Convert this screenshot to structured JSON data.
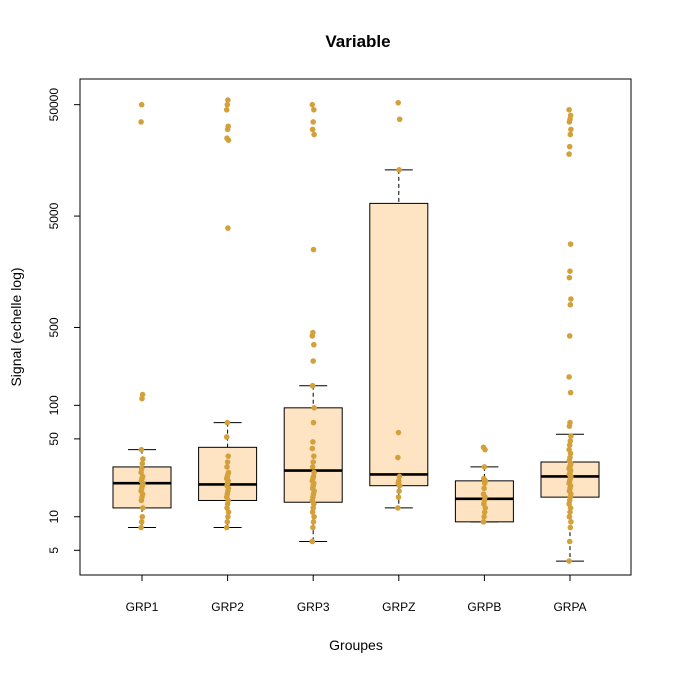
{
  "chart_data": {
    "type": "box",
    "title": "Variable",
    "xlabel": "Groupes",
    "ylabel": "Signal (echelle log)",
    "y_scale": "log",
    "ylim": [
      3,
      85000
    ],
    "y_ticks": [
      5,
      10,
      50,
      100,
      500,
      5000,
      50000
    ],
    "grid": false,
    "legend": "none",
    "colors": {
      "box_fill": "#FFE4C4",
      "point": "#D4A03A"
    },
    "categories": [
      "GRP1",
      "GRP2",
      "GRP3",
      "GRPZ",
      "GRPB",
      "GRPA"
    ],
    "boxes": [
      {
        "name": "GRP1",
        "whisker_low": 8,
        "q1": 12,
        "median": 20,
        "q3": 28,
        "whisker_high": 40
      },
      {
        "name": "GRP2",
        "whisker_low": 8,
        "q1": 14,
        "median": 19.5,
        "q3": 42,
        "whisker_high": 70
      },
      {
        "name": "GRP3",
        "whisker_low": 6,
        "q1": 13.5,
        "median": 26,
        "q3": 95,
        "whisker_high": 150
      },
      {
        "name": "GRPZ",
        "whisker_low": 12,
        "q1": 19,
        "median": 24,
        "q3": 6500,
        "whisker_high": 13000
      },
      {
        "name": "GRPB",
        "whisker_low": 9,
        "q1": 9,
        "median": 14.5,
        "q3": 21,
        "whisker_high": 28
      },
      {
        "name": "GRPA",
        "whisker_low": 4,
        "q1": 15,
        "median": 23,
        "q3": 31,
        "whisker_high": 55
      }
    ],
    "points": [
      {
        "group": "GRP1",
        "values": [
          8,
          9,
          10,
          12,
          14,
          15,
          16,
          17,
          18,
          19,
          20,
          21,
          22,
          23,
          25,
          27,
          30,
          33,
          40,
          115,
          125,
          35000,
          50000
        ]
      },
      {
        "group": "GRP2",
        "values": [
          8,
          9,
          10,
          11,
          12,
          13,
          14,
          15,
          16,
          17,
          18,
          19,
          20,
          21,
          22,
          23,
          24,
          25,
          28,
          31,
          35,
          52,
          70,
          3900,
          24000,
          25000,
          30000,
          32000,
          45000,
          50000,
          55000
        ]
      },
      {
        "group": "GRP3",
        "values": [
          6,
          8,
          9,
          10,
          11,
          12,
          13,
          14,
          15,
          16,
          17,
          18,
          19,
          20,
          21,
          22,
          23,
          25,
          28,
          31,
          35,
          41,
          47,
          70,
          95,
          150,
          250,
          350,
          420,
          450,
          2500,
          27000,
          30000,
          35000,
          45000,
          50000
        ]
      },
      {
        "group": "GRPZ",
        "values": [
          12,
          15,
          17,
          19,
          20,
          21,
          23,
          34,
          57,
          13000,
          37000,
          52000
        ]
      },
      {
        "group": "GRPB",
        "values": [
          9,
          10,
          11,
          12,
          13,
          14,
          15,
          16,
          18,
          20,
          21,
          22,
          28,
          40,
          42
        ]
      },
      {
        "group": "GRPA",
        "values": [
          4,
          6,
          8,
          9,
          10,
          11,
          12,
          13,
          14,
          15,
          16,
          17,
          18,
          19,
          20,
          21,
          22,
          23,
          24,
          25,
          26,
          27,
          28,
          29,
          30,
          32,
          34,
          37,
          40,
          44,
          48,
          53,
          65,
          70,
          130,
          180,
          420,
          800,
          900,
          1400,
          1600,
          2800,
          18000,
          21000,
          27000,
          30000,
          35000,
          37000,
          40000,
          45000
        ]
      }
    ]
  }
}
